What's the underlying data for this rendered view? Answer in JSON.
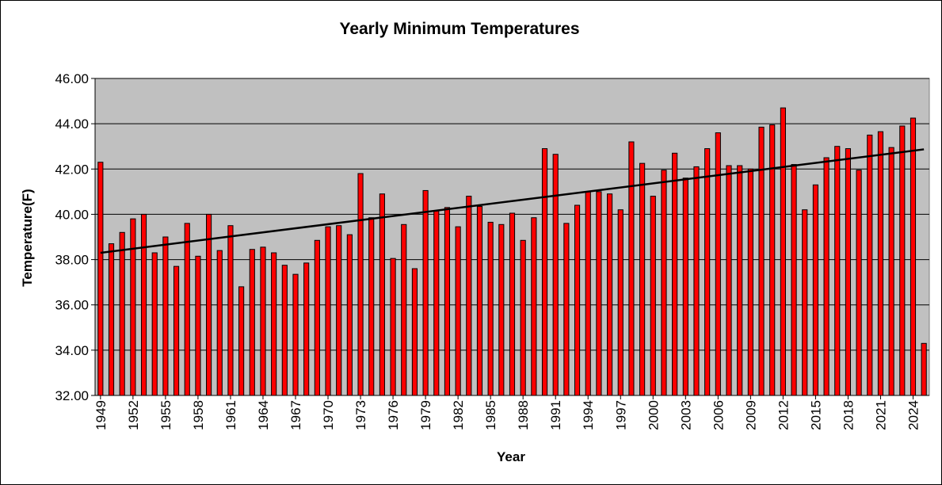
{
  "chart_data": {
    "type": "bar",
    "title": "Yearly Minimum Temperatures",
    "xlabel": "Year",
    "ylabel": "Temperature(F)",
    "ylim": [
      32,
      46
    ],
    "yticks": [
      "32.00",
      "34.00",
      "36.00",
      "38.00",
      "40.00",
      "42.00",
      "44.00",
      "46.00"
    ],
    "grid": true,
    "plot_background": "#c0c0c0",
    "bar_color": "#ff0000",
    "trendline_color": "#000000",
    "trendline": {
      "type": "linear",
      "start_value": 38.3,
      "end_value": 42.87
    },
    "categories": [
      "1949",
      "1950",
      "1951",
      "1952",
      "1953",
      "1954",
      "1955",
      "1956",
      "1957",
      "1958",
      "1959",
      "1960",
      "1961",
      "1962",
      "1963",
      "1964",
      "1965",
      "1966",
      "1967",
      "1968",
      "1969",
      "1970",
      "1971",
      "1972",
      "1973",
      "1974",
      "1975",
      "1976",
      "1977",
      "1978",
      "1979",
      "1980",
      "1981",
      "1982",
      "1983",
      "1984",
      "1985",
      "1986",
      "1987",
      "1988",
      "1989",
      "1990",
      "1991",
      "1992",
      "1993",
      "1994",
      "1995",
      "1996",
      "1997",
      "1998",
      "1999",
      "2000",
      "2001",
      "2002",
      "2003",
      "2004",
      "2005",
      "2006",
      "2007",
      "2008",
      "2009",
      "2010",
      "2011",
      "2012",
      "2013",
      "2014",
      "2015",
      "2016",
      "2017",
      "2018",
      "2019",
      "2020",
      "2021",
      "2022",
      "2023",
      "2024",
      "2025"
    ],
    "values": [
      42.3,
      38.7,
      39.2,
      39.8,
      40.0,
      38.3,
      39.0,
      37.7,
      39.6,
      38.15,
      40.0,
      38.4,
      39.5,
      36.8,
      38.45,
      38.55,
      38.3,
      37.75,
      37.35,
      37.85,
      38.85,
      39.45,
      39.5,
      39.1,
      41.8,
      39.85,
      40.9,
      38.05,
      39.55,
      37.6,
      41.05,
      40.15,
      40.3,
      39.45,
      40.8,
      40.35,
      39.65,
      39.55,
      40.05,
      38.85,
      39.85,
      42.9,
      42.65,
      39.6,
      40.4,
      41.0,
      41.0,
      40.9,
      40.2,
      43.2,
      42.25,
      40.8,
      41.95,
      42.7,
      41.6,
      42.1,
      42.9,
      43.6,
      42.15,
      42.15,
      42.0,
      43.85,
      43.95,
      44.7,
      42.2,
      40.2,
      41.3,
      42.5,
      43.0,
      42.9,
      41.95,
      43.5,
      43.65,
      42.95,
      43.9,
      44.25,
      34.3
    ],
    "x_tick_labels": [
      "1949",
      "1952",
      "1955",
      "1958",
      "1961",
      "1964",
      "1967",
      "1970",
      "1973",
      "1976",
      "1979",
      "1982",
      "1985",
      "1988",
      "1991",
      "1994",
      "1997",
      "2000",
      "2003",
      "2006",
      "2009",
      "2012",
      "2015",
      "2018",
      "2021",
      "2024"
    ]
  }
}
